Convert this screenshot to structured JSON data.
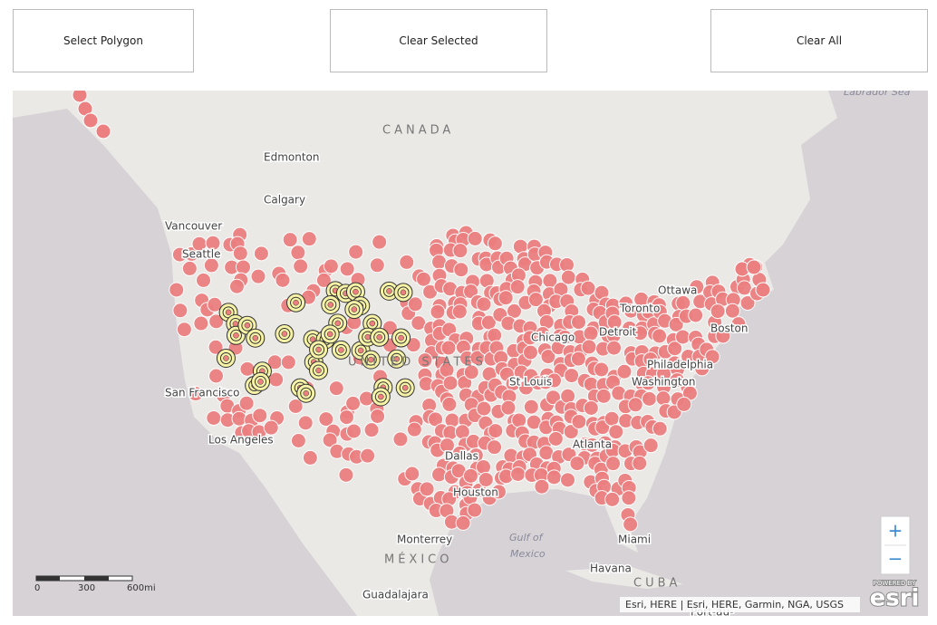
{
  "buttons": [
    "Select Polygon",
    "Clear Selected",
    "Clear All"
  ],
  "map": {
    "labels": [
      "Labrador Sea",
      "CANADA",
      "Edmonton",
      "Calgary",
      "Vancouver",
      "Seattle",
      "Ottawa",
      "Toronto",
      "Boston",
      "Detroit",
      "Chicago",
      "Philadelphia",
      "Washington",
      "St Louis",
      "San Francisco",
      "Los Angeles",
      "Atlanta",
      "Dallas",
      "Houston",
      "Monterrey",
      "MÉXICO",
      "Gulf of",
      "Mexico",
      "Havana",
      "CUBA",
      "Miami",
      "Guadalajara",
      "Port-au-",
      "UNITED STATES"
    ],
    "scale": [
      "0",
      "300",
      "600mi"
    ],
    "zoom": [
      "+",
      "−"
    ],
    "attribution": "Esri, HERE | Esri, HERE, Garmin, NGA, USGS",
    "logo": {
      "caption": "POWERED BY",
      "name": "esri"
    }
  }
}
